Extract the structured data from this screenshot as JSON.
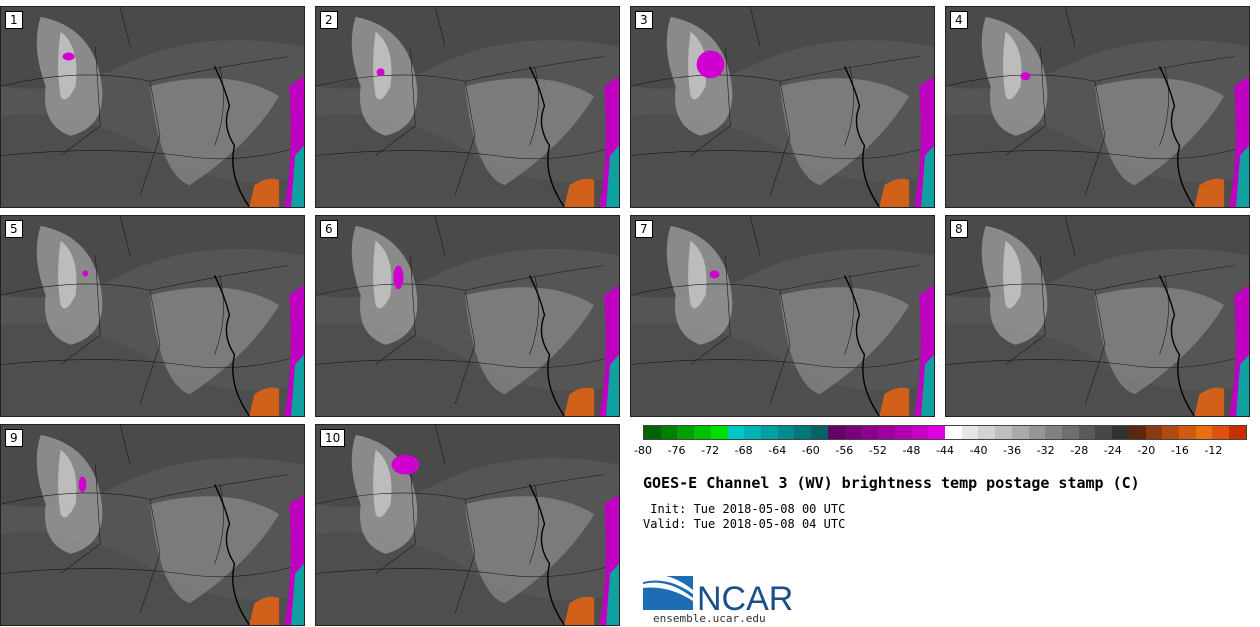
{
  "panels": [
    {
      "label": "1"
    },
    {
      "label": "2"
    },
    {
      "label": "3"
    },
    {
      "label": "4"
    },
    {
      "label": "5"
    },
    {
      "label": "6"
    },
    {
      "label": "7"
    },
    {
      "label": "8"
    },
    {
      "label": "9"
    },
    {
      "label": "10"
    }
  ],
  "colorbar": {
    "ticks": [
      "-80",
      "-76",
      "-72",
      "-68",
      "-64",
      "-60",
      "-56",
      "-52",
      "-48",
      "-44",
      "-40",
      "-36",
      "-32",
      "-28",
      "-24",
      "-20",
      "-16",
      "-12"
    ],
    "colors": [
      "#006400",
      "#008000",
      "#00a000",
      "#00c000",
      "#00e000",
      "#00c8c8",
      "#00b4b4",
      "#00a0a0",
      "#008c8c",
      "#007878",
      "#006464",
      "#640064",
      "#780078",
      "#8c008c",
      "#a000a0",
      "#b400b4",
      "#c800c8",
      "#e000e0",
      "#ffffff",
      "#e6e6e6",
      "#d2d2d2",
      "#bebebe",
      "#aaaaaa",
      "#969696",
      "#828282",
      "#6e6e6e",
      "#5a5a5a",
      "#464646",
      "#323232",
      "#5a2a10",
      "#8b3a10",
      "#b04a10",
      "#d05a10",
      "#e87010",
      "#e05010",
      "#c83000"
    ]
  },
  "title": "GOES-E Channel 3 (WV) brightness temp postage stamp (C)",
  "init": " Init: Tue 2018-05-08 00 UTC",
  "valid": "Valid: Tue 2018-05-08 04 UTC",
  "logo_text": "NCAR",
  "site": "ensemble.ucar.edu"
}
